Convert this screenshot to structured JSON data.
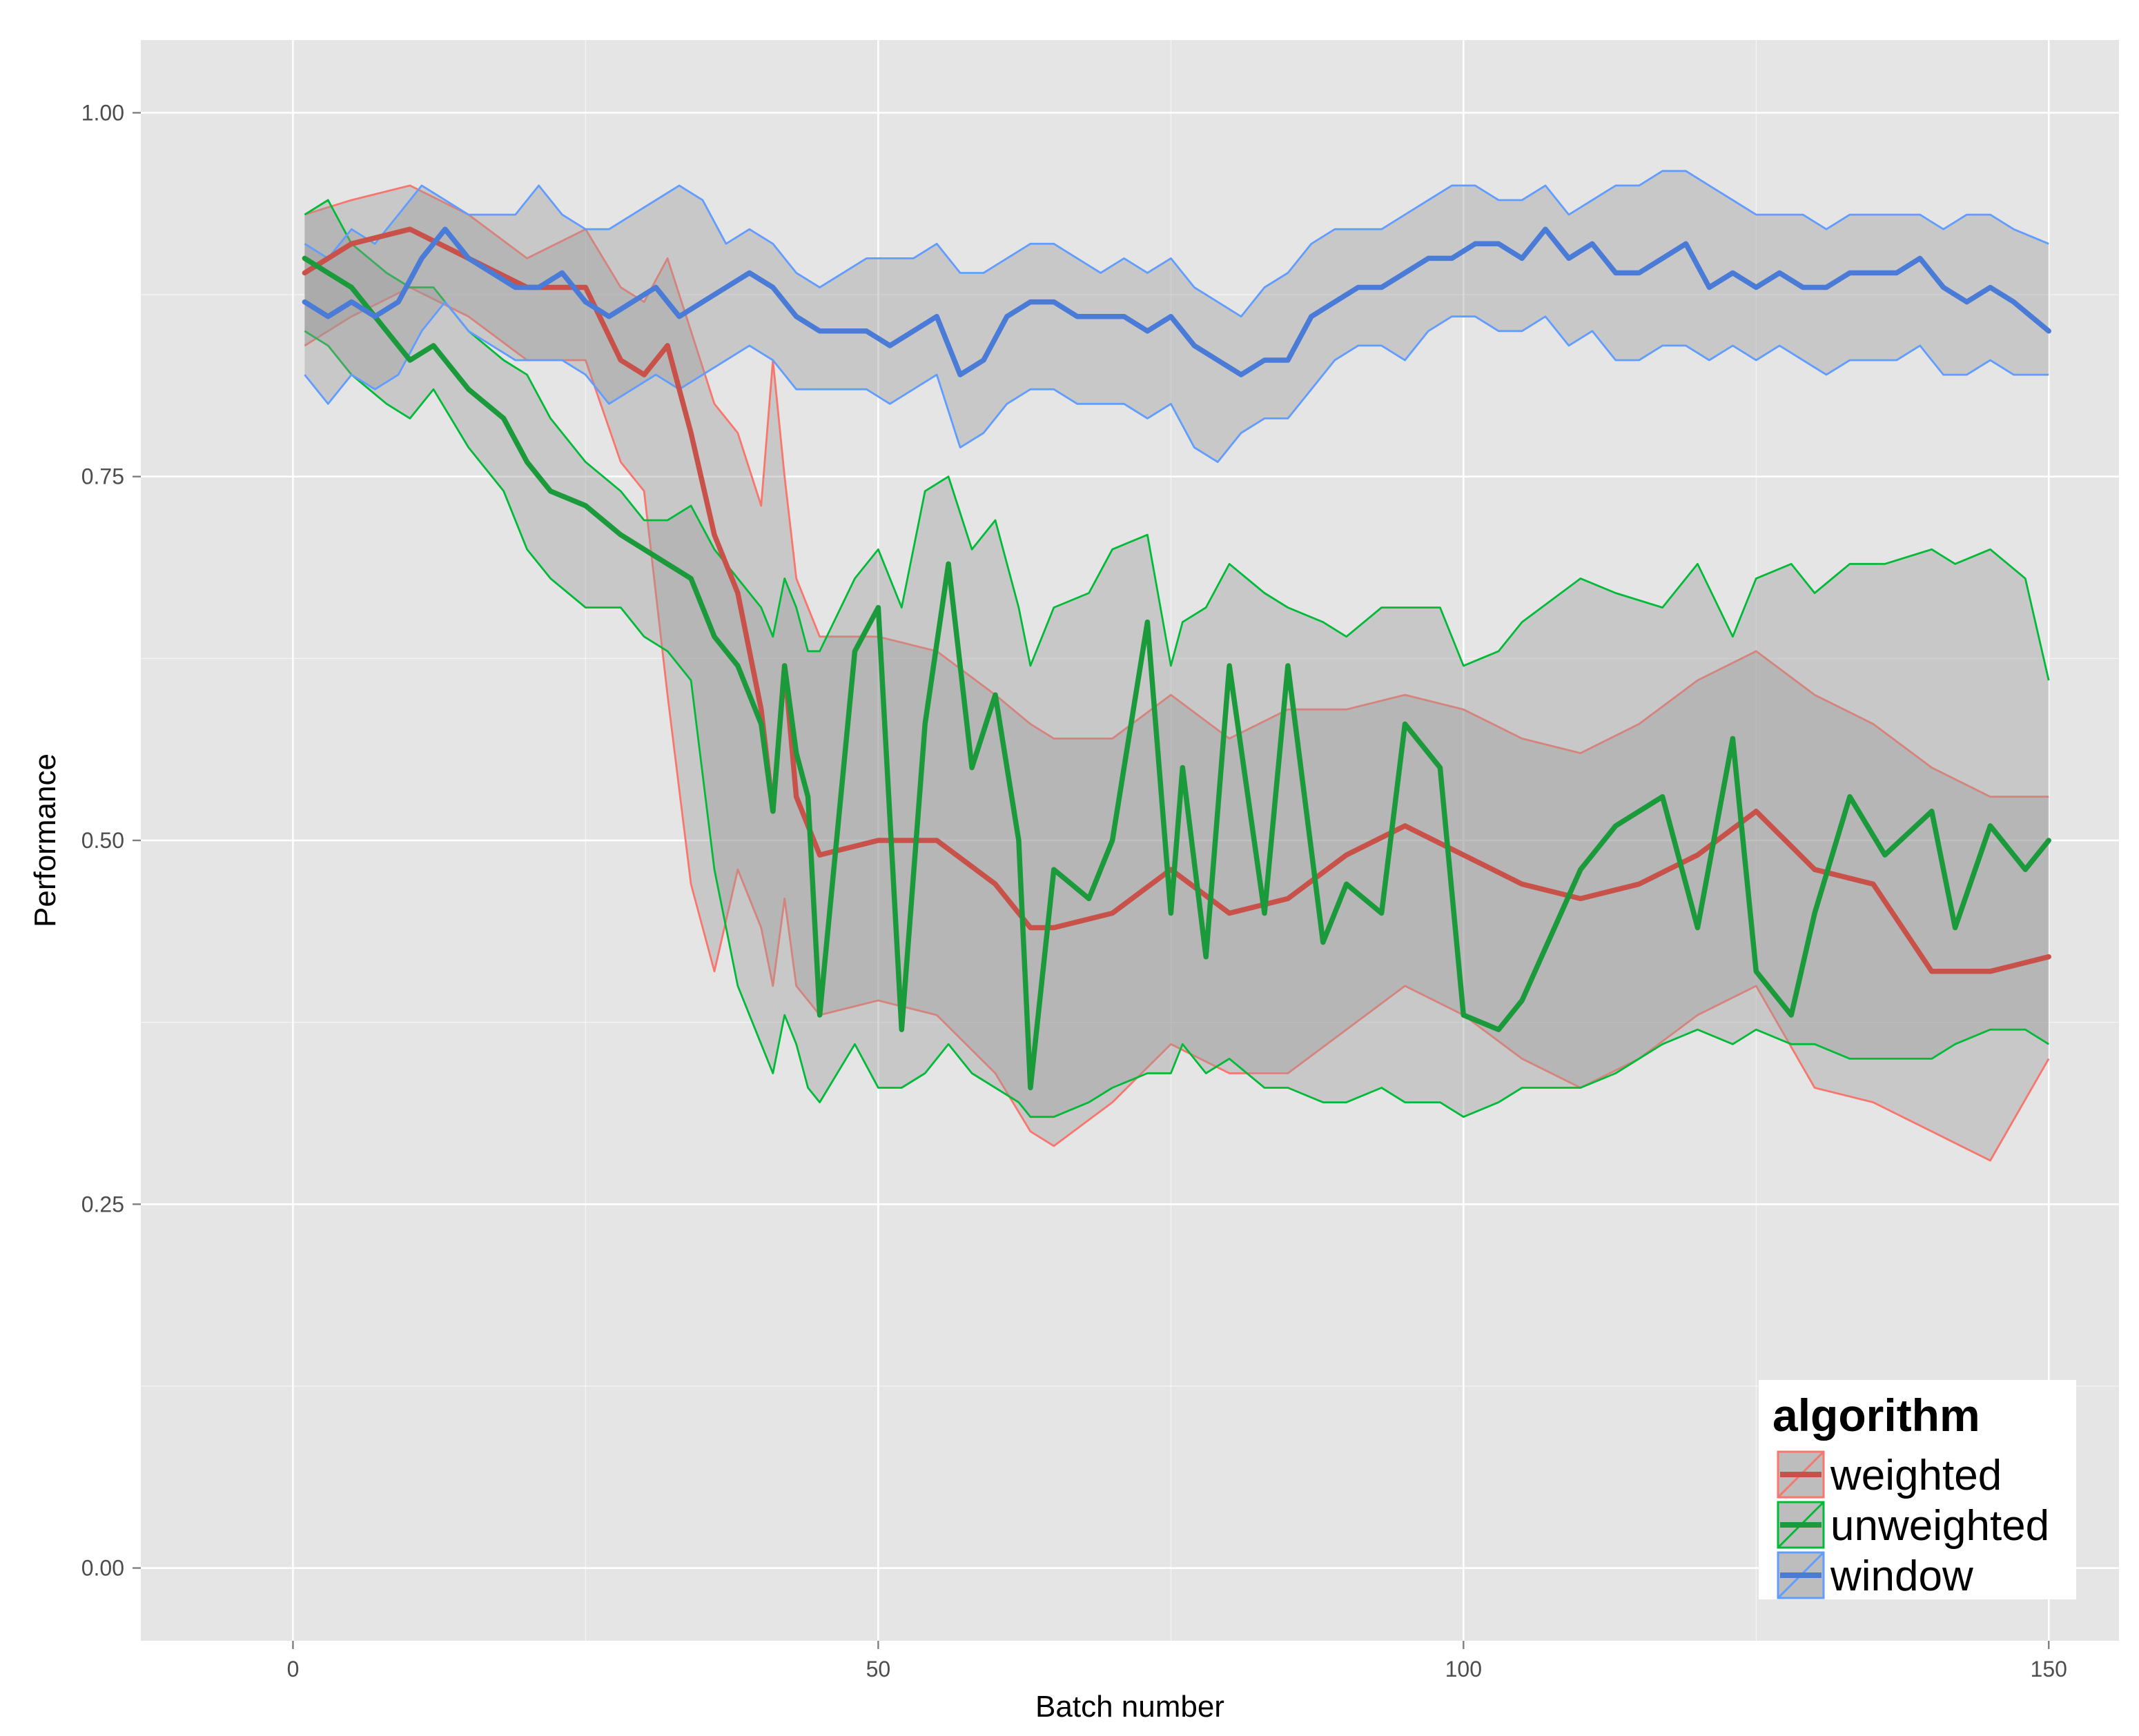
{
  "chart_data": {
    "type": "line",
    "title": "",
    "xlabel": "Batch number",
    "ylabel": "Performance",
    "xlim": [
      -13,
      156
    ],
    "ylim": [
      -0.05,
      1.05
    ],
    "x_ticks": [
      0,
      50,
      100,
      150
    ],
    "x_tick_labels": [
      "0",
      "50",
      "100",
      "150"
    ],
    "y_ticks": [
      0,
      0.25,
      0.5,
      0.75,
      1
    ],
    "y_tick_labels": [
      "0.00",
      "0.25",
      "0.50",
      "0.75",
      "1.00"
    ],
    "grid": true,
    "legend": {
      "title": "algorithm",
      "position": "bottom-right"
    },
    "colors": {
      "panel": "#e5e5e5",
      "grid": "#ffffff",
      "ribbon": "#999999"
    },
    "series": [
      {
        "name": "weighted",
        "color": "#f8766d",
        "line_color": "#c8524a",
        "x": [
          1,
          5,
          10,
          15,
          20,
          25,
          28,
          30,
          32,
          34,
          36,
          38,
          40,
          41,
          42,
          43,
          45,
          50,
          55,
          60,
          63,
          65,
          70,
          75,
          80,
          85,
          90,
          95,
          100,
          105,
          110,
          115,
          120,
          125,
          130,
          135,
          140,
          145,
          150
        ],
        "mean": [
          0.89,
          0.91,
          0.92,
          0.9,
          0.88,
          0.88,
          0.83,
          0.82,
          0.84,
          0.78,
          0.71,
          0.67,
          0.59,
          0.52,
          0.62,
          0.53,
          0.49,
          0.5,
          0.5,
          0.47,
          0.44,
          0.44,
          0.45,
          0.48,
          0.45,
          0.46,
          0.49,
          0.51,
          0.49,
          0.47,
          0.46,
          0.47,
          0.49,
          0.52,
          0.48,
          0.47,
          0.41,
          0.41,
          0.42
        ],
        "upper": [
          0.93,
          0.94,
          0.95,
          0.93,
          0.9,
          0.92,
          0.88,
          0.87,
          0.9,
          0.85,
          0.8,
          0.78,
          0.73,
          0.83,
          0.75,
          0.68,
          0.64,
          0.64,
          0.63,
          0.6,
          0.58,
          0.57,
          0.57,
          0.6,
          0.57,
          0.59,
          0.59,
          0.6,
          0.59,
          0.57,
          0.56,
          0.58,
          0.61,
          0.63,
          0.6,
          0.58,
          0.55,
          0.53,
          0.53
        ],
        "lower": [
          0.84,
          0.86,
          0.88,
          0.86,
          0.83,
          0.83,
          0.76,
          0.74,
          0.6,
          0.47,
          0.41,
          0.48,
          0.44,
          0.4,
          0.46,
          0.4,
          0.38,
          0.39,
          0.38,
          0.34,
          0.3,
          0.29,
          0.32,
          0.36,
          0.34,
          0.34,
          0.37,
          0.4,
          0.38,
          0.35,
          0.33,
          0.35,
          0.38,
          0.4,
          0.33,
          0.32,
          0.3,
          0.28,
          0.35
        ]
      },
      {
        "name": "unweighted",
        "color": "#00ba38",
        "line_color": "#1a9a3a",
        "x": [
          1,
          3,
          5,
          8,
          10,
          12,
          15,
          18,
          20,
          22,
          25,
          28,
          30,
          32,
          34,
          36,
          38,
          40,
          41,
          42,
          43,
          44,
          45,
          48,
          50,
          52,
          54,
          56,
          58,
          60,
          62,
          63,
          65,
          68,
          70,
          73,
          75,
          76,
          78,
          80,
          83,
          85,
          88,
          90,
          93,
          95,
          98,
          100,
          103,
          105,
          110,
          113,
          117,
          120,
          123,
          125,
          128,
          130,
          133,
          136,
          140,
          142,
          145,
          148,
          150
        ],
        "mean": [
          0.9,
          0.89,
          0.88,
          0.85,
          0.83,
          0.84,
          0.81,
          0.79,
          0.76,
          0.74,
          0.73,
          0.71,
          0.7,
          0.69,
          0.68,
          0.64,
          0.62,
          0.58,
          0.52,
          0.62,
          0.56,
          0.53,
          0.38,
          0.63,
          0.66,
          0.37,
          0.58,
          0.69,
          0.55,
          0.6,
          0.5,
          0.33,
          0.48,
          0.46,
          0.5,
          0.65,
          0.45,
          0.55,
          0.42,
          0.62,
          0.45,
          0.62,
          0.43,
          0.47,
          0.45,
          0.58,
          0.55,
          0.38,
          0.37,
          0.39,
          0.48,
          0.51,
          0.53,
          0.44,
          0.57,
          0.41,
          0.38,
          0.45,
          0.53,
          0.49,
          0.52,
          0.44,
          0.51,
          0.48,
          0.5
        ],
        "upper": [
          0.93,
          0.94,
          0.91,
          0.89,
          0.88,
          0.88,
          0.85,
          0.83,
          0.82,
          0.79,
          0.76,
          0.74,
          0.72,
          0.72,
          0.73,
          0.7,
          0.68,
          0.66,
          0.64,
          0.68,
          0.66,
          0.63,
          0.63,
          0.68,
          0.7,
          0.66,
          0.74,
          0.75,
          0.7,
          0.72,
          0.66,
          0.62,
          0.66,
          0.67,
          0.7,
          0.71,
          0.62,
          0.65,
          0.66,
          0.69,
          0.67,
          0.66,
          0.65,
          0.64,
          0.66,
          0.66,
          0.66,
          0.62,
          0.63,
          0.65,
          0.68,
          0.67,
          0.66,
          0.69,
          0.64,
          0.68,
          0.69,
          0.67,
          0.69,
          0.69,
          0.7,
          0.69,
          0.7,
          0.68,
          0.61
        ],
        "lower": [
          0.85,
          0.84,
          0.82,
          0.8,
          0.79,
          0.81,
          0.77,
          0.74,
          0.7,
          0.68,
          0.66,
          0.66,
          0.64,
          0.63,
          0.61,
          0.48,
          0.4,
          0.36,
          0.34,
          0.38,
          0.36,
          0.33,
          0.32,
          0.36,
          0.33,
          0.33,
          0.34,
          0.36,
          0.34,
          0.33,
          0.32,
          0.31,
          0.31,
          0.32,
          0.33,
          0.34,
          0.34,
          0.36,
          0.34,
          0.35,
          0.33,
          0.33,
          0.32,
          0.32,
          0.33,
          0.32,
          0.32,
          0.31,
          0.32,
          0.33,
          0.33,
          0.34,
          0.36,
          0.37,
          0.36,
          0.37,
          0.36,
          0.36,
          0.35,
          0.35,
          0.35,
          0.36,
          0.37,
          0.37,
          0.36
        ]
      },
      {
        "name": "window",
        "color": "#619cff",
        "line_color": "#4a7bd6",
        "x": [
          1,
          3,
          5,
          7,
          9,
          11,
          13,
          15,
          17,
          19,
          21,
          23,
          25,
          27,
          29,
          31,
          33,
          35,
          37,
          39,
          41,
          43,
          45,
          47,
          49,
          51,
          53,
          55,
          57,
          59,
          61,
          63,
          65,
          67,
          69,
          71,
          73,
          75,
          77,
          79,
          81,
          83,
          85,
          87,
          89,
          91,
          93,
          95,
          97,
          99,
          101,
          103,
          105,
          107,
          109,
          111,
          113,
          115,
          117,
          119,
          121,
          123,
          125,
          127,
          129,
          131,
          133,
          135,
          137,
          139,
          141,
          143,
          145,
          147,
          150
        ],
        "mean": [
          0.87,
          0.86,
          0.87,
          0.86,
          0.87,
          0.9,
          0.92,
          0.9,
          0.89,
          0.88,
          0.88,
          0.89,
          0.87,
          0.86,
          0.87,
          0.88,
          0.86,
          0.87,
          0.88,
          0.89,
          0.88,
          0.86,
          0.85,
          0.85,
          0.85,
          0.84,
          0.85,
          0.86,
          0.82,
          0.83,
          0.86,
          0.87,
          0.87,
          0.86,
          0.86,
          0.86,
          0.85,
          0.86,
          0.84,
          0.83,
          0.82,
          0.83,
          0.83,
          0.86,
          0.87,
          0.88,
          0.88,
          0.89,
          0.9,
          0.9,
          0.91,
          0.91,
          0.9,
          0.92,
          0.9,
          0.91,
          0.89,
          0.89,
          0.9,
          0.91,
          0.88,
          0.89,
          0.88,
          0.89,
          0.88,
          0.88,
          0.89,
          0.89,
          0.89,
          0.9,
          0.88,
          0.87,
          0.88,
          0.87,
          0.85
        ],
        "upper": [
          0.91,
          0.9,
          0.92,
          0.91,
          0.93,
          0.95,
          0.94,
          0.93,
          0.93,
          0.93,
          0.95,
          0.93,
          0.92,
          0.92,
          0.93,
          0.94,
          0.95,
          0.94,
          0.91,
          0.92,
          0.91,
          0.89,
          0.88,
          0.89,
          0.9,
          0.9,
          0.9,
          0.91,
          0.89,
          0.89,
          0.9,
          0.91,
          0.91,
          0.9,
          0.89,
          0.9,
          0.89,
          0.9,
          0.88,
          0.87,
          0.86,
          0.88,
          0.89,
          0.91,
          0.92,
          0.92,
          0.92,
          0.93,
          0.94,
          0.95,
          0.95,
          0.94,
          0.94,
          0.95,
          0.93,
          0.94,
          0.95,
          0.95,
          0.96,
          0.96,
          0.95,
          0.94,
          0.93,
          0.93,
          0.93,
          0.92,
          0.93,
          0.93,
          0.93,
          0.93,
          0.92,
          0.93,
          0.93,
          0.92,
          0.91
        ],
        "lower": [
          0.82,
          0.8,
          0.82,
          0.81,
          0.82,
          0.85,
          0.87,
          0.85,
          0.84,
          0.83,
          0.83,
          0.83,
          0.82,
          0.8,
          0.81,
          0.82,
          0.81,
          0.82,
          0.83,
          0.84,
          0.83,
          0.81,
          0.81,
          0.81,
          0.81,
          0.8,
          0.81,
          0.82,
          0.77,
          0.78,
          0.8,
          0.81,
          0.81,
          0.8,
          0.8,
          0.8,
          0.79,
          0.8,
          0.77,
          0.76,
          0.78,
          0.79,
          0.79,
          0.81,
          0.83,
          0.84,
          0.84,
          0.83,
          0.85,
          0.86,
          0.86,
          0.85,
          0.85,
          0.86,
          0.84,
          0.85,
          0.83,
          0.83,
          0.84,
          0.84,
          0.83,
          0.84,
          0.83,
          0.84,
          0.83,
          0.82,
          0.83,
          0.83,
          0.83,
          0.84,
          0.82,
          0.82,
          0.83,
          0.82,
          0.82
        ]
      }
    ]
  }
}
